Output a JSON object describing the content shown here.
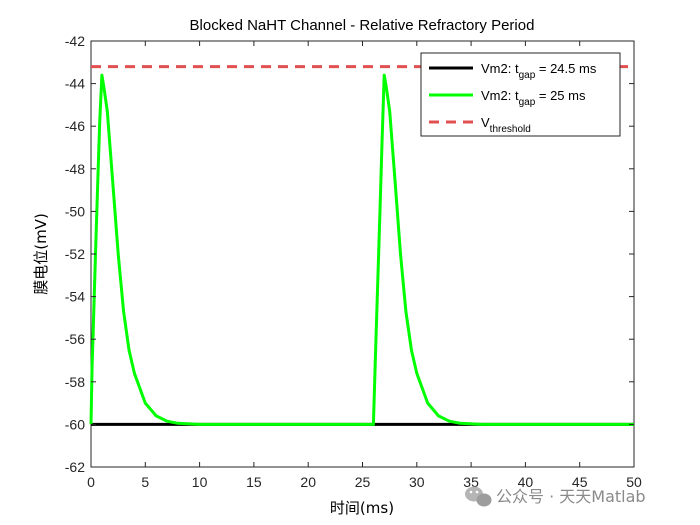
{
  "chart_data": {
    "type": "line",
    "title": "Blocked NaHT Channel - Relative Refractory Period",
    "xlabel": "时间(ms)",
    "ylabel": "膜电位(mV)",
    "xlim": [
      0,
      50
    ],
    "ylim": [
      -62,
      -42
    ],
    "xticks": [
      0,
      5,
      10,
      15,
      20,
      25,
      30,
      35,
      40,
      45,
      50
    ],
    "yticks": [
      -42,
      -44,
      -46,
      -48,
      -50,
      -52,
      -54,
      -56,
      -58,
      -60,
      -62
    ],
    "grid": false,
    "legend_position": "top-right",
    "series": [
      {
        "name_prefix": "Vm2: t",
        "name_sub": "gap",
        "name_suffix": " = 24.5 ms",
        "color": "#000000",
        "x": [
          0,
          5,
          10,
          20,
          25.5,
          26,
          27,
          28,
          30,
          32,
          34,
          36,
          40,
          45,
          50
        ],
        "y": [
          -60,
          -60,
          -60,
          -60,
          -60,
          -60,
          -60,
          -60,
          -60,
          -60,
          -60,
          -60,
          -60,
          -60,
          -60
        ]
      },
      {
        "name_prefix": "Vm2: t",
        "name_sub": "gap",
        "name_suffix": " = 25 ms",
        "color": "#00ff00",
        "x": [
          0,
          0.1,
          0.2,
          0.4,
          0.6,
          0.8,
          1.0,
          1.2,
          1.5,
          2.0,
          2.5,
          3.0,
          3.5,
          4.0,
          5.0,
          6.0,
          7.0,
          8.0,
          10,
          15,
          20,
          25,
          26.0,
          26.2,
          26.4,
          26.6,
          26.8,
          27.0,
          27.2,
          27.5,
          28.0,
          28.5,
          29.0,
          29.5,
          30.0,
          31.0,
          32.0,
          33.0,
          34.0,
          36.0,
          40,
          45,
          50
        ],
        "y": [
          -60,
          -57.2,
          -55.6,
          -52.3,
          -49.0,
          -45.8,
          -43.6,
          -44.2,
          -45.3,
          -48.6,
          -52.0,
          -54.7,
          -56.5,
          -57.6,
          -59.0,
          -59.6,
          -59.85,
          -59.95,
          -60,
          -60,
          -60,
          -60,
          -60,
          -56.7,
          -53.4,
          -50.1,
          -46.8,
          -43.6,
          -44.2,
          -45.3,
          -48.6,
          -52.0,
          -54.7,
          -56.5,
          -57.6,
          -59.0,
          -59.6,
          -59.85,
          -59.95,
          -60,
          -60,
          -60,
          -60
        ]
      },
      {
        "name_prefix": "V",
        "name_sub": "threshold",
        "name_suffix": "",
        "color": "#e05050",
        "style": "dashed",
        "x": [
          0,
          50
        ],
        "y": [
          -43.2,
          -43.2
        ]
      }
    ]
  },
  "watermark": "公众号 · 天天Matlab"
}
